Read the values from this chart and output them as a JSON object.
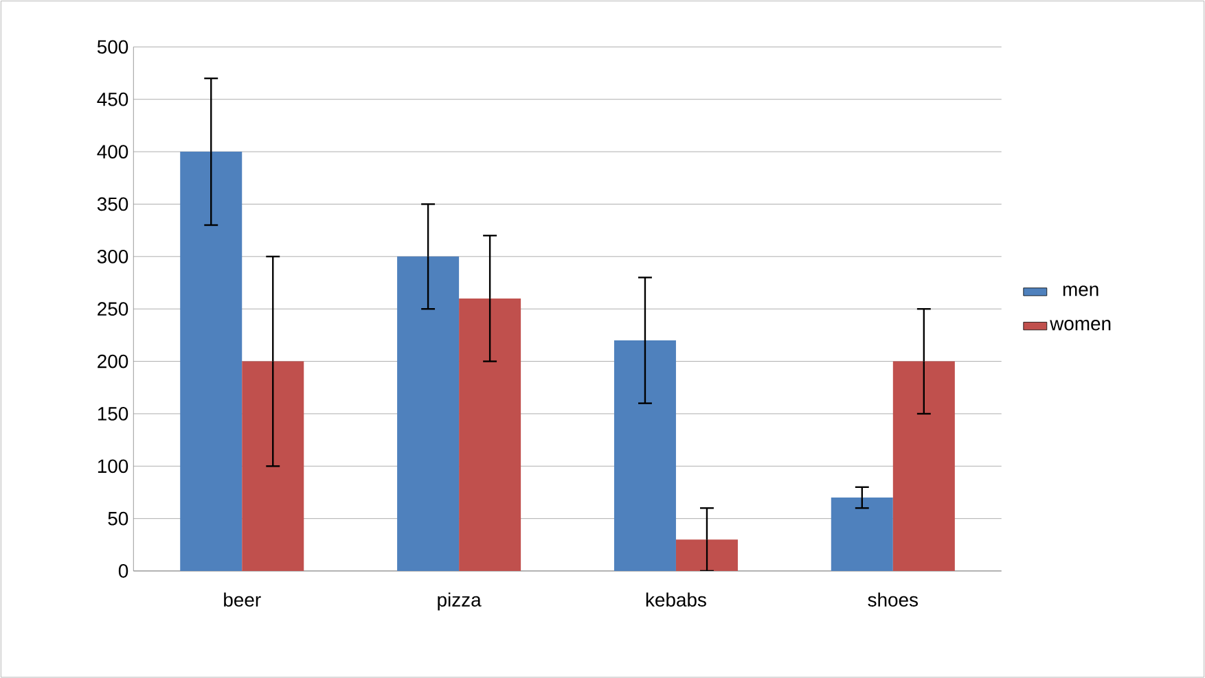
{
  "chart_data": {
    "type": "bar",
    "categories": [
      "beer",
      "pizza",
      "kebabs",
      "shoes"
    ],
    "series": [
      {
        "name": "men",
        "color": "#4f81bd",
        "values": [
          400,
          300,
          220,
          70
        ],
        "errors": [
          70,
          50,
          60,
          10
        ]
      },
      {
        "name": "women",
        "color": "#c0504d",
        "values": [
          200,
          260,
          30,
          200
        ],
        "errors": [
          100,
          60,
          30,
          50
        ]
      }
    ],
    "ylim": [
      0,
      500
    ],
    "yticks": [
      0,
      50,
      100,
      150,
      200,
      250,
      300,
      350,
      400,
      450,
      500
    ],
    "grid": "y",
    "legend": "right"
  }
}
